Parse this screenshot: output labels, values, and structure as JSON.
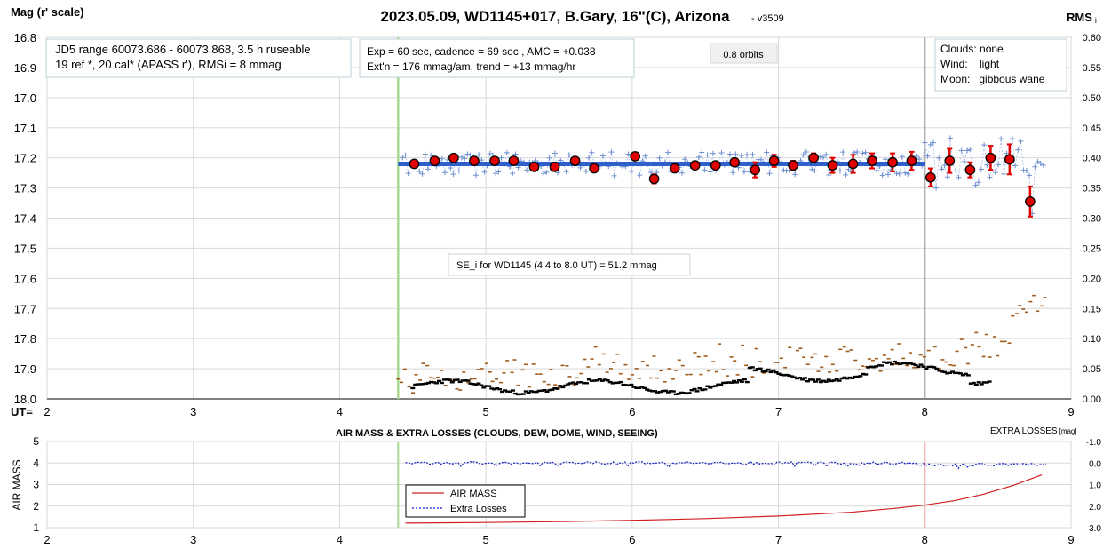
{
  "title": "2023.05.09, WD1145+017, B.Gary, 16\"(C), Arizona",
  "version": "- v3509",
  "left_axis_label": "Mag (r' scale)",
  "right_axis_label": "RMS",
  "right_axis_label_sub": "i",
  "ut_label": "UT=",
  "info_box_1": [
    "JD5 range 60073.686 - 60073.868, 3.5 h ruseable",
    "19 ref *, 20 cal*  (APASS r'), RMSi = 8 mmag"
  ],
  "info_box_2": [
    "Exp = 60 sec, cadence = 69 sec , AMC = +0.038",
    "Ext'n = 176 mmag/am, trend = +13 mmag/hr"
  ],
  "orbits_label": "0.8 orbits",
  "conditions_box": [
    "Clouds: none",
    "Wind:    light",
    "Moon:   gibbous wane"
  ],
  "se_box": "SE_i for WD1145 (4.4 to 8.0 UT) = 51.2 mmag",
  "bottom_title": "AIR MASS & EXTRA LOSSES (CLOUDS, DEW, DOME, WIND, SEEING)",
  "bottom_left_label": "AIR MASS",
  "bottom_right_label": "EXTRA LOSSES",
  "bottom_right_label_unit": "[mag]",
  "legend": [
    "AIR MASS",
    "Extra Losses"
  ],
  "colors": {
    "binned": "#e00000",
    "raw": "#6f8fd0",
    "fit": "#2f5fc8",
    "rms_black": "#000000",
    "rms_brown": "#a05a1a",
    "start_line": "#a8d890",
    "end_line": "#909090",
    "airmass": "#d02020",
    "extra_losses": "#1020c0"
  },
  "chart_data": [
    {
      "type": "scatter",
      "x_ticks": [
        "2",
        "3",
        "4",
        "5",
        "6",
        "7",
        "8",
        "9"
      ],
      "y_ticks": [
        "16.8",
        "16.9",
        "17.0",
        "17.1",
        "17.2",
        "17.3",
        "17.4",
        "17.5",
        "17.6",
        "17.7",
        "17.8",
        "17.9",
        "18.0"
      ],
      "y2_ticks": [
        "0.60",
        "0.55",
        "0.50",
        "0.45",
        "0.40",
        "0.35",
        "0.30",
        "0.25",
        "0.20",
        "0.15",
        "0.10",
        "0.05",
        "0.00"
      ],
      "xlim": [
        2,
        9
      ],
      "ylim": [
        18.0,
        16.8
      ],
      "y2lim": [
        0.0,
        0.6
      ],
      "start_ut": 4.4,
      "end_ut": 8.0,
      "fit_line": {
        "x": [
          4.4,
          8.0
        ],
        "y": [
          17.22,
          17.22
        ]
      },
      "binned_points": {
        "x": [
          4.51,
          4.65,
          4.78,
          4.92,
          5.06,
          5.19,
          5.33,
          5.47,
          5.61,
          5.74,
          6.02,
          6.15,
          6.29,
          6.43,
          6.57,
          6.7,
          6.84,
          6.97,
          7.1,
          7.24,
          7.37,
          7.51,
          7.64,
          7.78,
          7.91,
          8.04,
          8.17,
          8.31,
          8.45,
          8.58,
          8.72
        ],
        "y": [
          17.22,
          17.21,
          17.2,
          17.21,
          17.21,
          17.21,
          17.23,
          17.23,
          17.21,
          17.235,
          17.195,
          17.27,
          17.235,
          17.225,
          17.225,
          17.215,
          17.24,
          17.21,
          17.225,
          17.2,
          17.225,
          17.22,
          17.21,
          17.215,
          17.21,
          17.265,
          17.21,
          17.24,
          17.2,
          17.205,
          17.345
        ],
        "err": [
          0.01,
          0.008,
          0.008,
          0.008,
          0.008,
          0.008,
          0.008,
          0.008,
          0.008,
          0.012,
          0.012,
          0.015,
          0.012,
          0.012,
          0.012,
          0.012,
          0.025,
          0.02,
          0.015,
          0.015,
          0.025,
          0.03,
          0.025,
          0.03,
          0.03,
          0.03,
          0.04,
          0.025,
          0.04,
          0.05,
          0.05
        ]
      },
      "raw_series": {
        "x_start": 4.43,
        "x_step": 0.0193,
        "count": 229,
        "noise_mag": 0.04
      },
      "rms_black": {
        "x_start": 4.5,
        "x_step": 0.018,
        "count": 220,
        "base": 0.02
      },
      "rms_brown": {
        "x_start": 4.4,
        "x_step": 0.025,
        "count": 180
      }
    },
    {
      "type": "line",
      "x_ticks": [
        "2",
        "3",
        "4",
        "5",
        "6",
        "7",
        "8",
        "9"
      ],
      "y_ticks": [
        "5",
        "4",
        "3",
        "2",
        "1"
      ],
      "y2_ticks": [
        "-1.0",
        "0.0",
        "1.0",
        "2.0",
        "3.0"
      ],
      "xlim": [
        2,
        9
      ],
      "ylim": [
        1,
        5
      ],
      "y2lim": [
        3.0,
        -1.0
      ],
      "airmass": {
        "x": [
          4.45,
          5.0,
          5.5,
          6.0,
          6.5,
          7.0,
          7.5,
          7.8,
          8.0,
          8.2,
          8.4,
          8.6,
          8.8
        ],
        "y": [
          1.21,
          1.24,
          1.28,
          1.34,
          1.42,
          1.54,
          1.72,
          1.9,
          2.05,
          2.25,
          2.55,
          2.95,
          3.45
        ]
      },
      "extra_losses": {
        "x_start": 4.45,
        "x_step": 0.02,
        "count": 220,
        "base": 0.0
      }
    }
  ]
}
